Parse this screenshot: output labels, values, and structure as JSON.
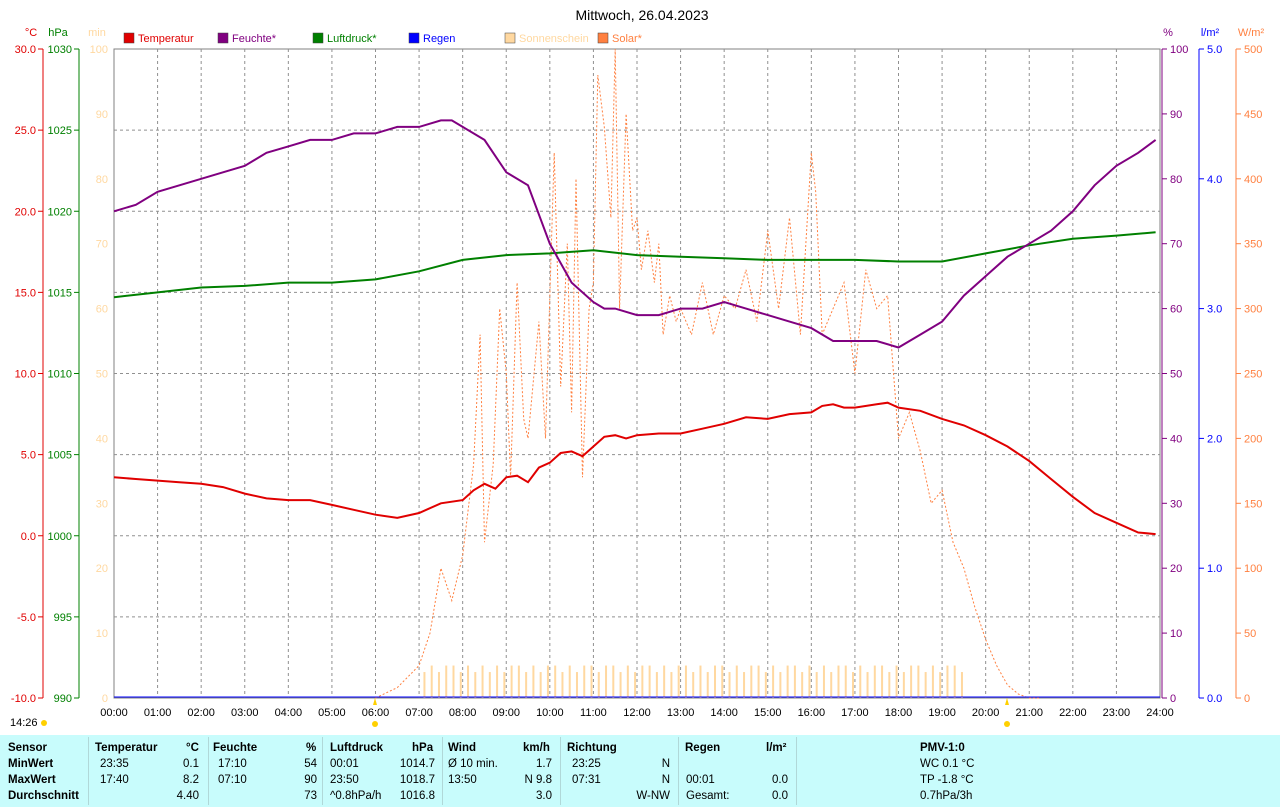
{
  "title": "Mittwoch, 26.04.2023",
  "clock": "14:26",
  "axes": {
    "temp_unit": "°C",
    "pressure_unit": "hPa",
    "sun_unit": "min",
    "humidity_unit": "%",
    "rain_unit": "l/m²",
    "solar_unit": "W/m²"
  },
  "legend": [
    {
      "label": "Temperatur",
      "color": "#e00000"
    },
    {
      "label": "Feuchte*",
      "color": "#800080"
    },
    {
      "label": "Luftdruck*",
      "color": "#008000"
    },
    {
      "label": "Regen",
      "color": "#0000ff"
    },
    {
      "label": "Sonnenschein",
      "color": "#ffd8a0"
    },
    {
      "label": "Solar*",
      "color": "#ff8040"
    }
  ],
  "chart_data": {
    "type": "line",
    "x_ticks": [
      "00:00",
      "01:00",
      "02:00",
      "03:00",
      "04:00",
      "05:00",
      "06:00",
      "07:00",
      "08:00",
      "09:00",
      "10:00",
      "11:00",
      "12:00",
      "13:00",
      "14:00",
      "15:00",
      "16:00",
      "17:00",
      "18:00",
      "19:00",
      "20:00",
      "21:00",
      "22:00",
      "23:00",
      "24:00"
    ],
    "temp_ticks": [
      "30.0",
      "25.0",
      "20.0",
      "15.0",
      "10.0",
      "5.0",
      "0.0",
      "-5.0",
      "-10.0"
    ],
    "pressure_ticks": [
      "1030",
      "1025",
      "1020",
      "1015",
      "1010",
      "1005",
      "1000",
      "995",
      "990"
    ],
    "sun_ticks": [
      "100",
      "90",
      "80",
      "70",
      "60",
      "50",
      "40",
      "30",
      "20",
      "10",
      "0"
    ],
    "humidity_ticks": [
      "100",
      "90",
      "80",
      "70",
      "60",
      "50",
      "40",
      "30",
      "20",
      "10",
      "0"
    ],
    "rain_ticks": [
      "5.0",
      "4.0",
      "3.0",
      "2.0",
      "1.0",
      "0.0"
    ],
    "solar_ticks": [
      "500",
      "450",
      "400",
      "350",
      "300",
      "250",
      "200",
      "150",
      "100",
      "50",
      "0"
    ],
    "ranges": {
      "temp": [
        -10,
        30
      ],
      "pressure": [
        990,
        1030
      ],
      "humidity": [
        0,
        100
      ],
      "rain": [
        0,
        5
      ],
      "solar": [
        0,
        500
      ],
      "sunshine": [
        0,
        100
      ],
      "x_hours": [
        0,
        24
      ]
    },
    "series": {
      "temperature": {
        "name": "Temperatur",
        "color": "#e00000",
        "x": [
          0,
          0.5,
          1,
          1.5,
          2,
          2.5,
          3,
          3.5,
          4,
          4.5,
          5,
          5.5,
          6,
          6.5,
          7,
          7.5,
          8,
          8.25,
          8.5,
          8.75,
          9,
          9.25,
          9.5,
          9.75,
          10,
          10.25,
          10.5,
          10.75,
          11,
          11.25,
          11.5,
          11.75,
          12,
          12.5,
          13,
          13.5,
          14,
          14.5,
          15,
          15.5,
          16,
          16.25,
          16.5,
          16.75,
          17,
          17.5,
          17.75,
          18,
          18.5,
          19,
          19.5,
          20,
          20.5,
          21,
          21.5,
          22,
          22.5,
          23,
          23.5,
          23.9
        ],
        "values": [
          3.6,
          3.5,
          3.4,
          3.3,
          3.2,
          3.0,
          2.6,
          2.3,
          2.2,
          2.2,
          1.9,
          1.6,
          1.3,
          1.1,
          1.4,
          2.0,
          2.2,
          2.8,
          3.2,
          2.9,
          3.6,
          3.7,
          3.3,
          4.2,
          4.5,
          5.1,
          5.2,
          4.9,
          5.5,
          6.1,
          6.2,
          6.0,
          6.2,
          6.3,
          6.3,
          6.6,
          6.9,
          7.3,
          7.2,
          7.5,
          7.6,
          8.0,
          8.1,
          7.9,
          7.9,
          8.1,
          8.2,
          7.9,
          7.7,
          7.2,
          6.8,
          6.2,
          5.5,
          4.6,
          3.5,
          2.4,
          1.4,
          0.8,
          0.2,
          0.1
        ]
      },
      "humidity": {
        "name": "Feuchte*",
        "color": "#800080",
        "x": [
          0,
          0.5,
          1,
          1.5,
          2,
          2.5,
          3,
          3.5,
          4,
          4.5,
          5,
          5.5,
          6,
          6.5,
          7,
          7.5,
          7.75,
          8,
          8.5,
          9,
          9.5,
          10,
          10.5,
          11,
          11.25,
          11.5,
          12,
          12.5,
          13,
          13.5,
          14,
          14.5,
          15,
          15.5,
          16,
          16.5,
          17,
          17.5,
          18,
          18.5,
          19,
          19.5,
          20,
          20.5,
          21,
          21.5,
          22,
          22.5,
          23,
          23.5,
          23.9
        ],
        "values": [
          75,
          76,
          78,
          79,
          80,
          81,
          82,
          84,
          85,
          86,
          86,
          87,
          87,
          88,
          88,
          89,
          89,
          88,
          86,
          81,
          79,
          70,
          64,
          61,
          60,
          60,
          59,
          59,
          60,
          60,
          61,
          60,
          59,
          58,
          57,
          55,
          55,
          55,
          54,
          56,
          58,
          62,
          65,
          68,
          70,
          72,
          75,
          79,
          82,
          84,
          86
        ]
      },
      "pressure": {
        "name": "Luftdruck*",
        "color": "#008000",
        "x": [
          0,
          1,
          2,
          3,
          4,
          5,
          6,
          7,
          8,
          9,
          10,
          11,
          12,
          13,
          14,
          15,
          16,
          17,
          18,
          19,
          20,
          21,
          22,
          23,
          23.9
        ],
        "values": [
          1014.7,
          1015.0,
          1015.3,
          1015.4,
          1015.6,
          1015.6,
          1015.8,
          1016.3,
          1017.0,
          1017.3,
          1017.4,
          1017.6,
          1017.3,
          1017.2,
          1017.1,
          1017.0,
          1017.0,
          1017.0,
          1016.9,
          1016.9,
          1017.4,
          1017.9,
          1018.3,
          1018.5,
          1018.7
        ]
      },
      "solar": {
        "name": "Solar*",
        "color": "#ff8040",
        "x": [
          6.0,
          6.5,
          7.0,
          7.25,
          7.5,
          7.75,
          8.0,
          8.25,
          8.4,
          8.5,
          8.7,
          8.85,
          9.0,
          9.1,
          9.25,
          9.4,
          9.5,
          9.75,
          9.9,
          10.1,
          10.25,
          10.4,
          10.5,
          10.6,
          10.75,
          10.9,
          11.0,
          11.1,
          11.25,
          11.4,
          11.5,
          11.6,
          11.75,
          11.9,
          12.0,
          12.1,
          12.25,
          12.4,
          12.5,
          12.6,
          12.75,
          12.9,
          13.0,
          13.25,
          13.5,
          13.75,
          14.0,
          14.25,
          14.5,
          14.75,
          15.0,
          15.25,
          15.5,
          15.75,
          16.0,
          16.1,
          16.25,
          16.5,
          16.75,
          17.0,
          17.25,
          17.5,
          17.75,
          18.0,
          18.25,
          18.5,
          18.75,
          19.0,
          19.25,
          19.5,
          19.75,
          20.0,
          20.25,
          20.5,
          20.75,
          21.0,
          21.25
        ],
        "values": [
          0,
          8,
          25,
          50,
          100,
          75,
          110,
          180,
          280,
          120,
          180,
          300,
          250,
          170,
          320,
          215,
          200,
          290,
          200,
          420,
          240,
          350,
          220,
          400,
          170,
          300,
          320,
          480,
          440,
          370,
          500,
          300,
          450,
          360,
          370,
          330,
          360,
          320,
          350,
          280,
          310,
          290,
          300,
          280,
          320,
          280,
          310,
          300,
          330,
          290,
          360,
          300,
          370,
          280,
          420,
          390,
          280,
          300,
          320,
          250,
          330,
          300,
          310,
          200,
          220,
          190,
          150,
          160,
          120,
          100,
          70,
          45,
          25,
          10,
          3,
          0,
          0
        ]
      },
      "sunshine": {
        "name": "Sonnenschein",
        "color": "#ffd8a0",
        "x_start": 7.1,
        "x_end": 19.55,
        "step_minutes": 10,
        "value": 5,
        "bars": [
          4,
          5,
          4,
          5,
          5,
          4,
          5,
          4,
          5,
          4,
          5,
          4,
          5,
          5,
          4,
          5,
          4,
          5,
          5,
          4,
          5,
          4,
          5,
          5,
          4,
          5,
          5,
          4,
          5,
          4,
          5,
          5,
          4,
          5,
          4,
          5,
          5,
          4,
          5,
          4,
          5,
          5,
          4,
          5,
          4,
          5,
          5,
          4,
          5,
          4,
          5,
          5,
          4,
          5,
          4,
          5,
          4,
          5,
          5,
          4,
          5,
          4,
          5,
          5,
          4,
          5,
          4,
          5,
          5,
          4,
          5,
          4,
          5,
          5,
          4,
          5
        ]
      },
      "rain": {
        "name": "Regen",
        "color": "#0000ff",
        "values": [
          0
        ]
      }
    }
  },
  "stats": {
    "headers": {
      "sensor": "Sensor",
      "temp": "Temperatur",
      "temp_unit": "°C",
      "feuchte": "Feuchte",
      "feuchte_unit": "%",
      "luftdruck": "Luftdruck",
      "luftdruck_unit": "hPa",
      "wind": "Wind",
      "wind_unit": "km/h",
      "richtung": "Richtung",
      "regen": "Regen",
      "regen_unit": "l/m²",
      "pmv": "PMV-1:0"
    },
    "rows": [
      {
        "label": "MinWert",
        "temp_time": "23:35",
        "temp_val": "0.1",
        "feuchte_time": "17:10",
        "feuchte_val": "54",
        "druck_time": "00:01",
        "druck_val": "1014.7",
        "wind_label": "Ø 10 min.",
        "wind_val": "1.7",
        "richtung_time": "23:25",
        "richtung_val": "N",
        "regen_time": "",
        "regen_val": "",
        "pmv": "WC 0.1 °C"
      },
      {
        "label": "MaxWert",
        "temp_time": "17:40",
        "temp_val": "8.2",
        "feuchte_time": "07:10",
        "feuchte_val": "90",
        "druck_time": "23:50",
        "druck_val": "1018.7",
        "wind_label": "13:50",
        "wind_val": "N 9.8",
        "richtung_time": "07:31",
        "richtung_val": "N",
        "regen_time": "00:01",
        "regen_val": "0.0",
        "pmv": "TP -1.8 °C"
      },
      {
        "label": "Durchschnitt",
        "temp_time": "",
        "temp_val": "4.40",
        "feuchte_time": "",
        "feuchte_val": "73",
        "druck_time": "^0.8hPa/h",
        "druck_val": "1016.8",
        "wind_label": "",
        "wind_val": "3.0",
        "richtung_time": "",
        "richtung_val": "W-NW",
        "regen_time": "Gesamt:",
        "regen_val": "0.0",
        "pmv": "0.7hPa/3h"
      }
    ]
  }
}
